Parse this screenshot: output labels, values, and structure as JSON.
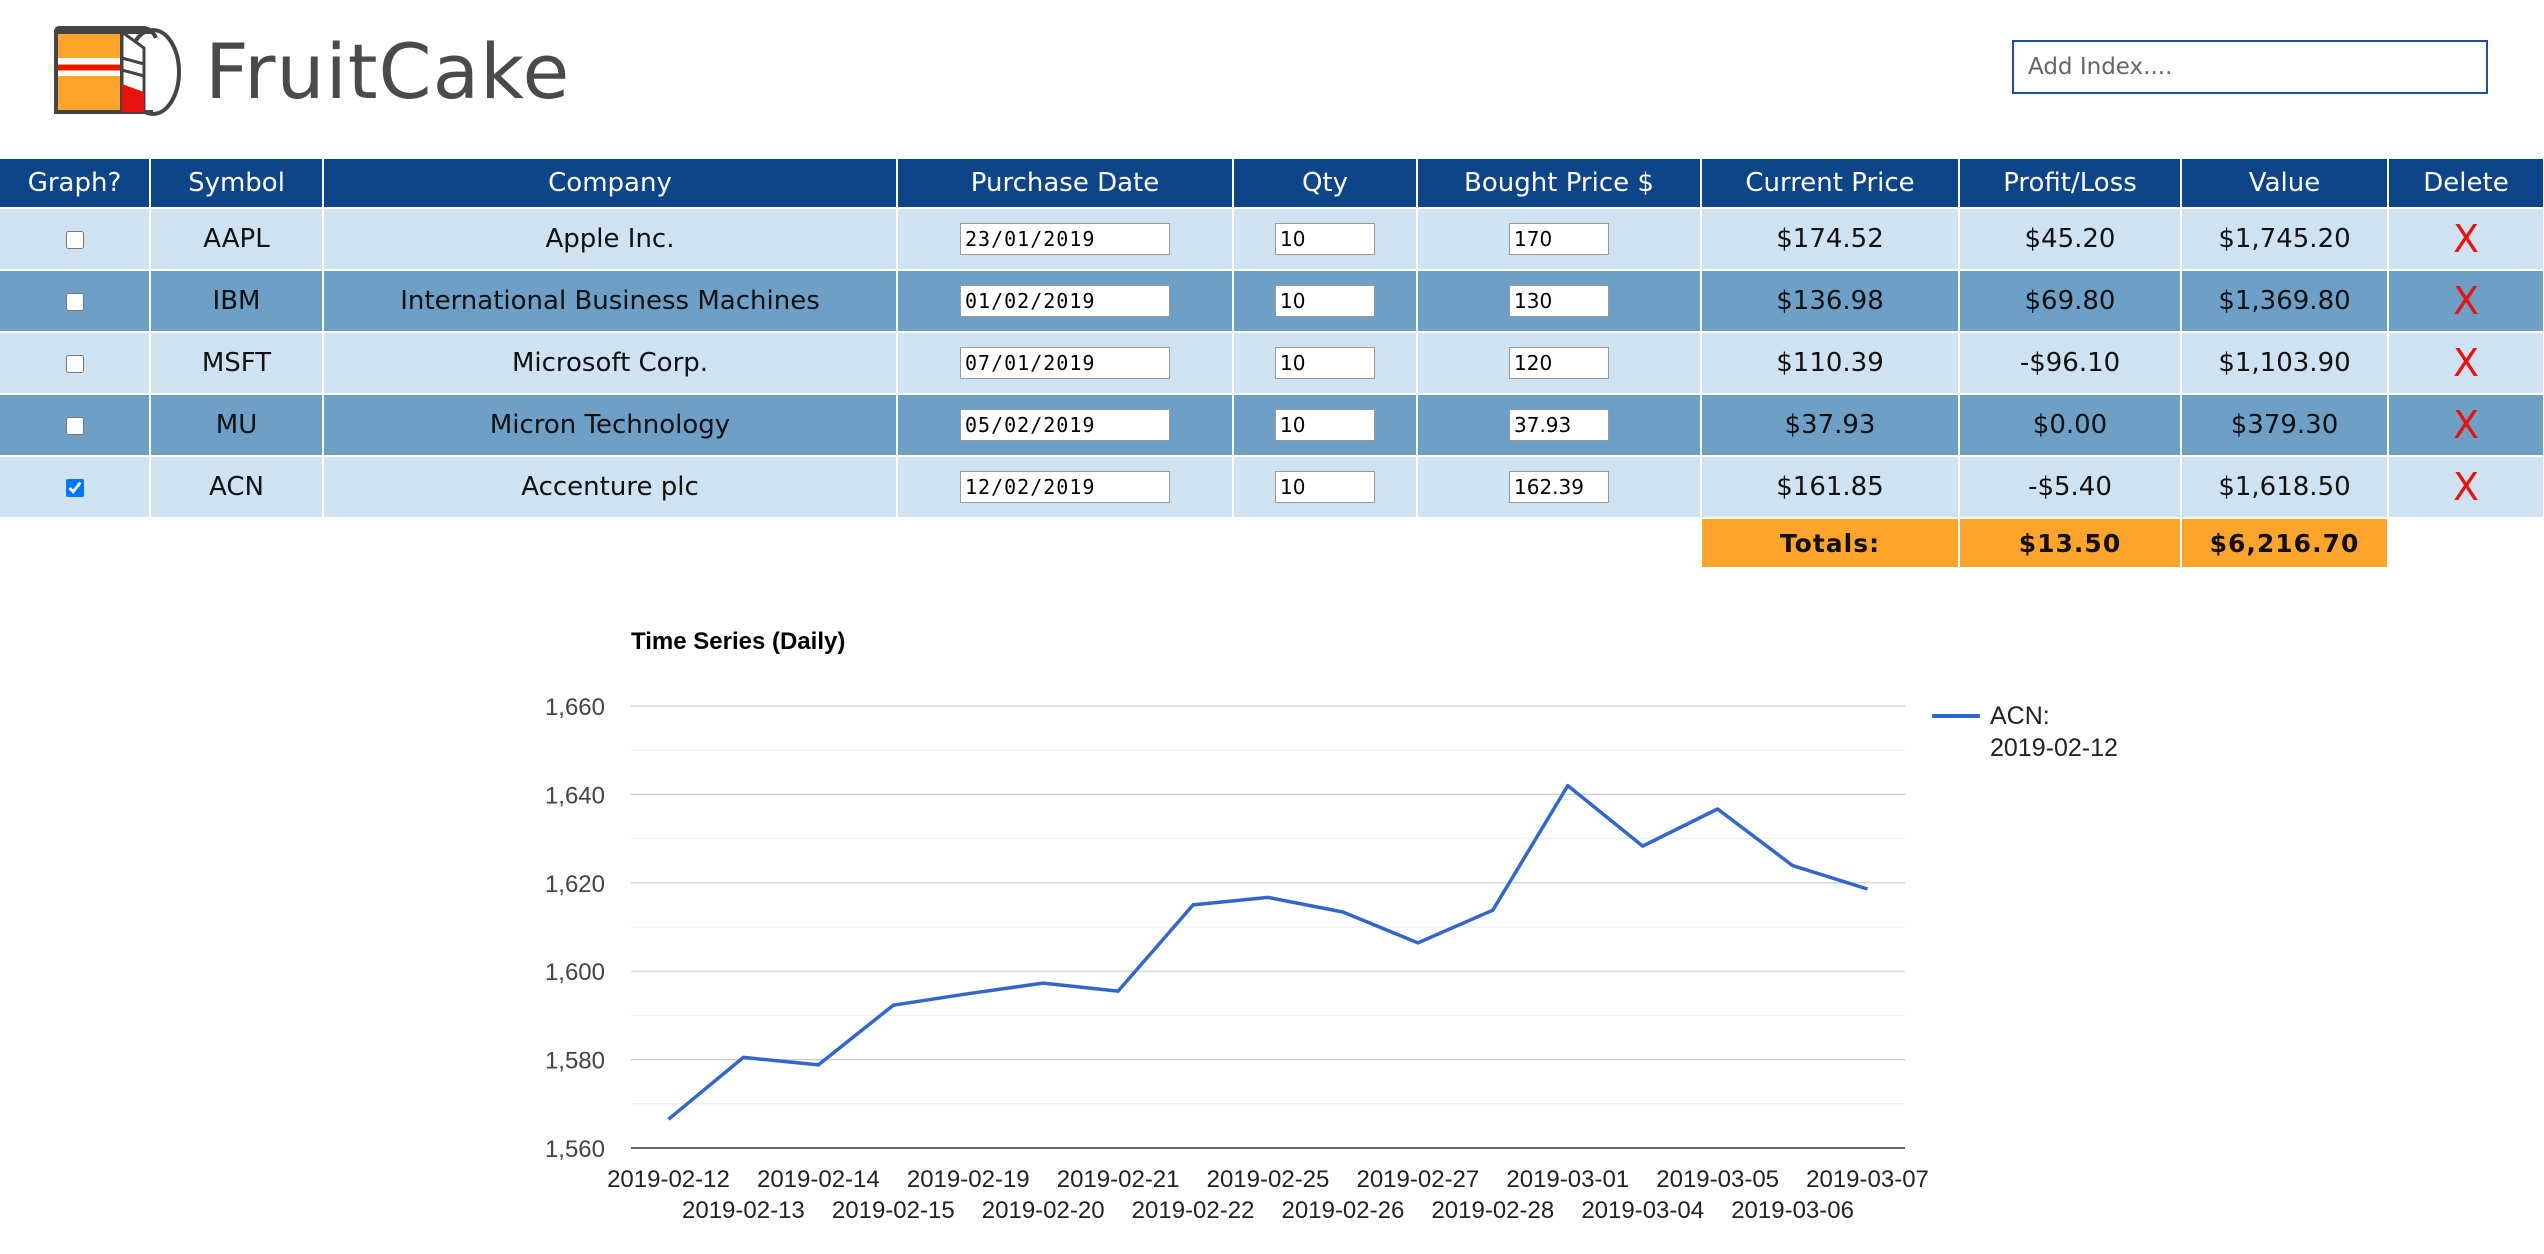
{
  "app": {
    "title": "FruitCake"
  },
  "search": {
    "placeholder": "Add Index...."
  },
  "table": {
    "headers": [
      "Graph?",
      "Symbol",
      "Company",
      "Purchase Date",
      "Qty",
      "Bought Price $",
      "Current Price",
      "Profit/Loss",
      "Value",
      "Delete"
    ],
    "rows": [
      {
        "checked": false,
        "symbol": "AAPL",
        "company": "Apple Inc.",
        "purchase_date": "23/01/2019",
        "qty": "10",
        "bought_price": "170",
        "current_price": "$174.52",
        "profit_loss": "$45.20",
        "value": "$1,745.20",
        "delete": "X"
      },
      {
        "checked": false,
        "symbol": "IBM",
        "company": "International Business Machines",
        "purchase_date": "01/02/2019",
        "qty": "10",
        "bought_price": "130",
        "current_price": "$136.98",
        "profit_loss": "$69.80",
        "value": "$1,369.80",
        "delete": "X"
      },
      {
        "checked": false,
        "symbol": "MSFT",
        "company": "Microsoft Corp.",
        "purchase_date": "07/01/2019",
        "qty": "10",
        "bought_price": "120",
        "current_price": "$110.39",
        "profit_loss": "-$96.10",
        "value": "$1,103.90",
        "delete": "X"
      },
      {
        "checked": false,
        "symbol": "MU",
        "company": "Micron Technology",
        "purchase_date": "05/02/2019",
        "qty": "10",
        "bought_price": "37.93",
        "current_price": "$37.93",
        "profit_loss": "$0.00",
        "value": "$379.30",
        "delete": "X"
      },
      {
        "checked": true,
        "symbol": "ACN",
        "company": "Accenture plc",
        "purchase_date": "12/02/2019",
        "qty": "10",
        "bought_price": "162.39",
        "current_price": "$161.85",
        "profit_loss": "-$5.40",
        "value": "$1,618.50",
        "delete": "X"
      }
    ],
    "totals": {
      "label": "Totals:",
      "profit_loss": "$13.50",
      "value": "$6,216.70"
    }
  },
  "colors": {
    "header_bg": "#0d4588",
    "row_light": "#cfe2f2",
    "row_dark": "#6d9fc7",
    "totals_bg": "#ffa42a",
    "delete_red": "#e8130e",
    "series_line": "#3366cc"
  },
  "icons": {
    "logo": "cake-icon",
    "delete": "delete-x-icon"
  },
  "chart_data": {
    "type": "line",
    "title": "Time Series (Daily)",
    "xlabel": "",
    "ylabel": "",
    "ylim": [
      1560,
      1660
    ],
    "yticks": [
      1560,
      1580,
      1600,
      1620,
      1640,
      1660
    ],
    "y_tick_labels": [
      "1,560",
      "1,580",
      "1,600",
      "1,620",
      "1,640",
      "1,660"
    ],
    "grid": true,
    "legend_position": "right",
    "x": [
      "2019-02-12",
      "2019-02-13",
      "2019-02-14",
      "2019-02-15",
      "2019-02-19",
      "2019-02-20",
      "2019-02-21",
      "2019-02-22",
      "2019-02-25",
      "2019-02-26",
      "2019-02-27",
      "2019-02-28",
      "2019-03-01",
      "2019-03-04",
      "2019-03-05",
      "2019-03-06",
      "2019-03-07"
    ],
    "series": [
      {
        "name": "ACN: 2019-02-12",
        "legend_lines": [
          "ACN:",
          "2019-02-12"
        ],
        "color": "#3366cc",
        "values": [
          1566.5,
          1580.5,
          1578.8,
          1592.3,
          1594.9,
          1597.3,
          1595.5,
          1615.0,
          1616.7,
          1613.4,
          1606.4,
          1613.8,
          1642.0,
          1628.3,
          1636.7,
          1623.9,
          1618.6
        ]
      }
    ]
  }
}
